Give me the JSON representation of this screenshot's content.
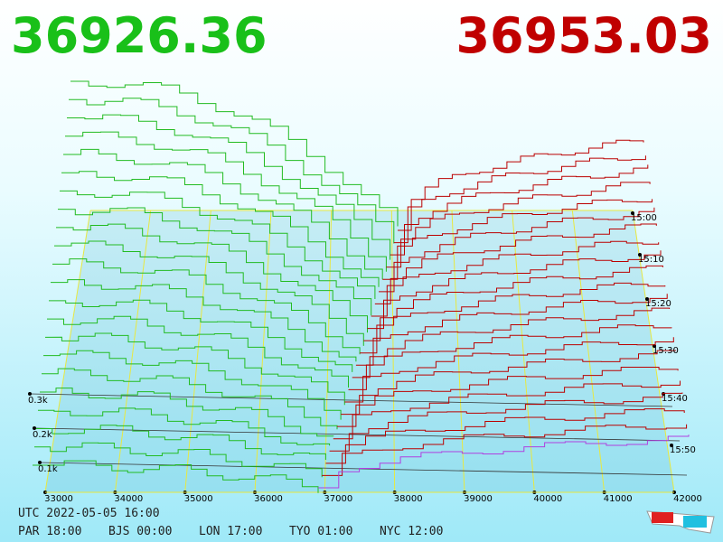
{
  "header": {
    "bid": "36926.36",
    "ask": "36953.03"
  },
  "price_axis": {
    "labels": [
      "33000",
      "34000",
      "35000",
      "36000",
      "37000",
      "38000",
      "39000",
      "40000",
      "41000",
      "42000"
    ]
  },
  "depth_axis": {
    "labels": [
      "0.1k",
      "0.2k",
      "0.3k"
    ]
  },
  "time_axis": {
    "labels": [
      "15:00",
      "15:10",
      "15:20",
      "15:30",
      "15:40",
      "15:50"
    ]
  },
  "footer": {
    "utc": "UTC 2022-05-05 16:00",
    "zones": [
      "PAR 18:00",
      "BJS 00:00",
      "LON 17:00",
      "TYO 01:00",
      "NYC 12:00"
    ]
  }
}
